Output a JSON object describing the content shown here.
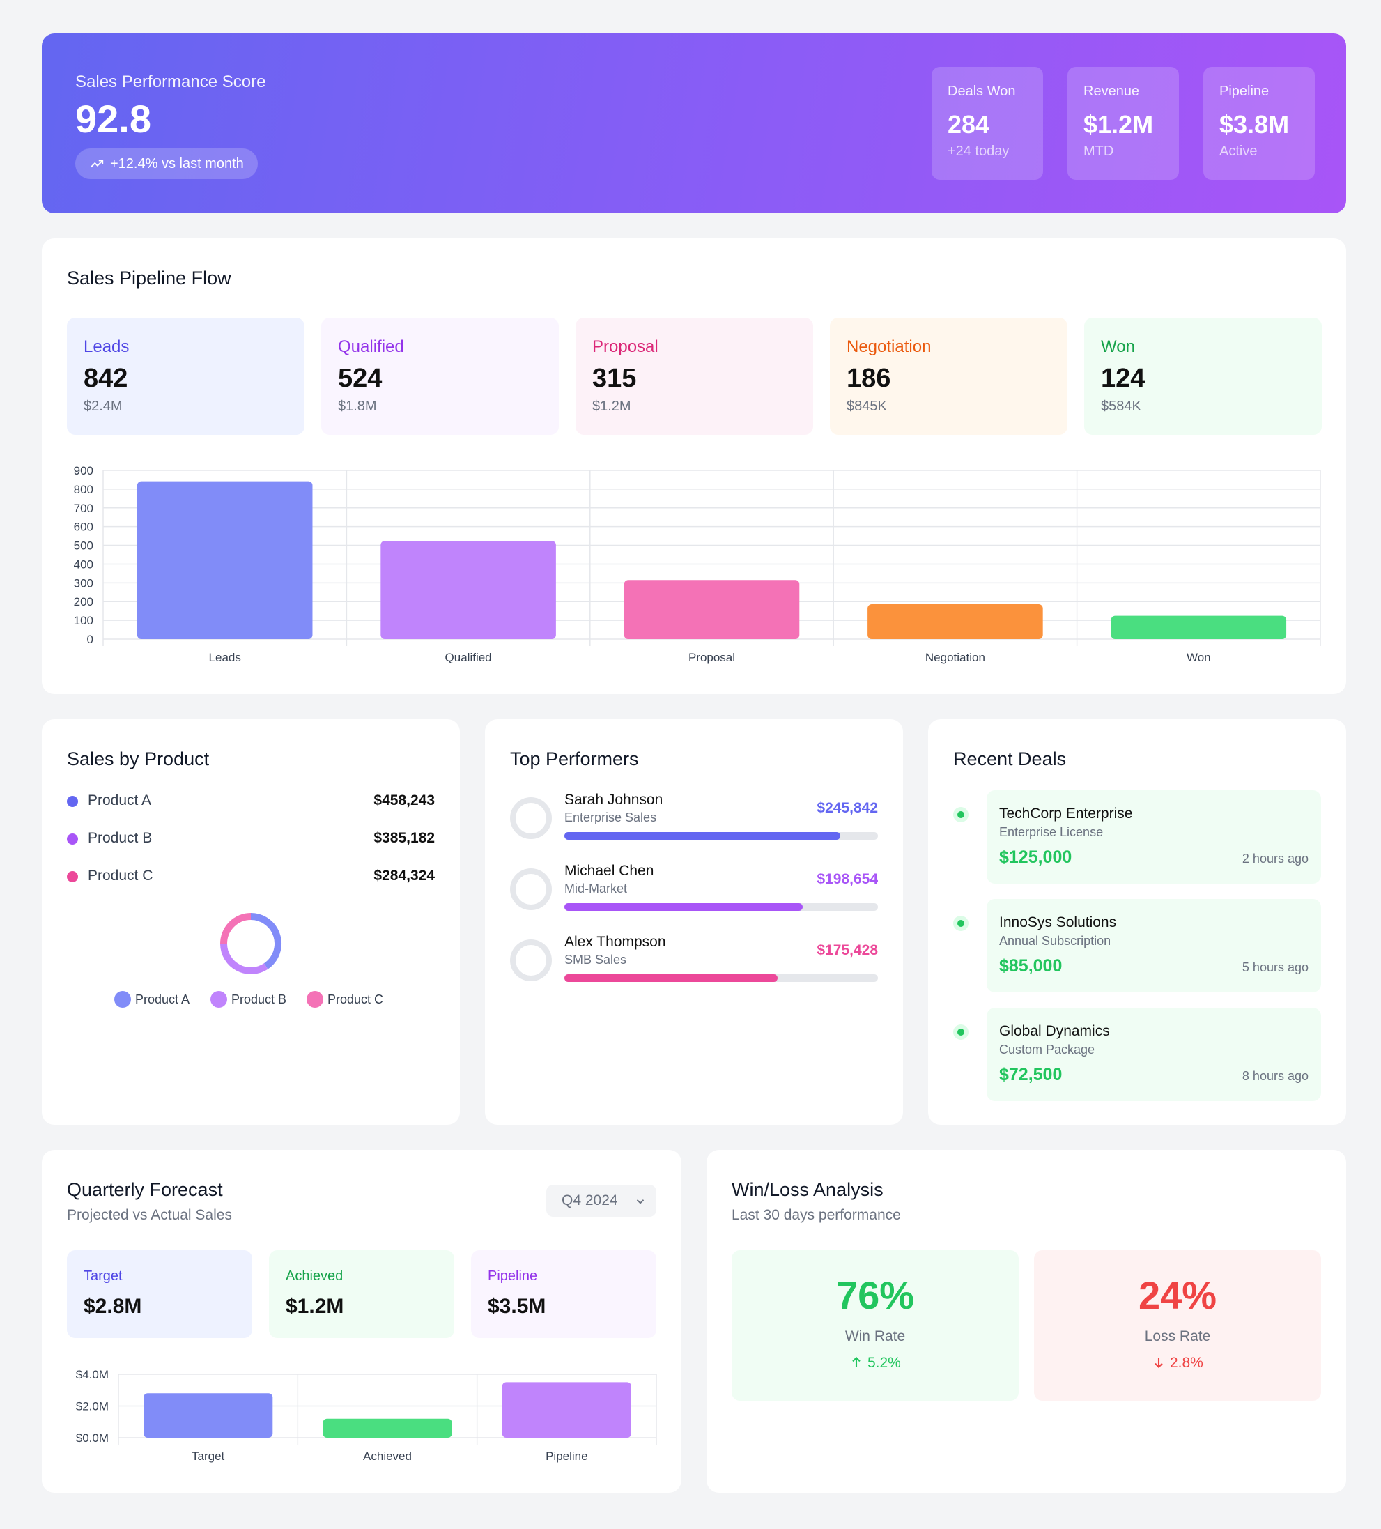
{
  "header": {
    "score_label": "Sales Performance Score",
    "score": "92.8",
    "trend": "+12.4% vs last month",
    "stats": [
      {
        "label": "Deals Won",
        "value": "284",
        "note": "+24 today"
      },
      {
        "label": "Revenue",
        "value": "$1.2M",
        "note": "MTD"
      },
      {
        "label": "Pipeline",
        "value": "$3.8M",
        "note": "Active"
      }
    ]
  },
  "pipeline": {
    "title": "Sales Pipeline Flow",
    "stages": [
      {
        "name": "Leads",
        "count": "842",
        "amount": "$2.4M",
        "color": "#4f46e5",
        "bg": "#eef2ff"
      },
      {
        "name": "Qualified",
        "count": "524",
        "amount": "$1.8M",
        "color": "#9333ea",
        "bg": "#faf5ff"
      },
      {
        "name": "Proposal",
        "count": "315",
        "amount": "$1.2M",
        "color": "#db2777",
        "bg": "#fdf2f8"
      },
      {
        "name": "Negotiation",
        "count": "186",
        "amount": "$845K",
        "color": "#ea580c",
        "bg": "#fff7ed"
      },
      {
        "name": "Won",
        "count": "124",
        "amount": "$584K",
        "color": "#16a34a",
        "bg": "#f0fdf4"
      }
    ]
  },
  "products": {
    "title": "Sales by Product",
    "items": [
      {
        "name": "Product A",
        "value": "$458,243",
        "color": "#6366f1"
      },
      {
        "name": "Product B",
        "value": "$385,182",
        "color": "#a855f7"
      },
      {
        "name": "Product C",
        "value": "$284,324",
        "color": "#ec4899"
      }
    ]
  },
  "performers": {
    "title": "Top Performers",
    "items": [
      {
        "name": "Sarah Johnson",
        "role": "Enterprise Sales",
        "amount": "$245,842",
        "progress": 0.88,
        "color": "#6366f1"
      },
      {
        "name": "Michael Chen",
        "role": "Mid-Market",
        "amount": "$198,654",
        "progress": 0.76,
        "color": "#a855f7"
      },
      {
        "name": "Alex Thompson",
        "role": "SMB Sales",
        "amount": "$175,428",
        "progress": 0.68,
        "color": "#ec4899"
      }
    ]
  },
  "deals": {
    "title": "Recent Deals",
    "items": [
      {
        "name": "TechCorp Enterprise",
        "desc": "Enterprise License",
        "amount": "$125,000",
        "time": "2 hours ago"
      },
      {
        "name": "InnoSys Solutions",
        "desc": "Annual Subscription",
        "amount": "$85,000",
        "time": "5 hours ago"
      },
      {
        "name": "Global Dynamics",
        "desc": "Custom Package",
        "amount": "$72,500",
        "time": "8 hours ago"
      }
    ]
  },
  "forecast": {
    "title": "Quarterly Forecast",
    "subtitle": "Projected vs Actual Sales",
    "quarter": "Q4 2024",
    "boxes": [
      {
        "label": "Target",
        "value": "$2.8M",
        "color": "#4f46e5",
        "bg": "#eef2ff"
      },
      {
        "label": "Achieved",
        "value": "$1.2M",
        "color": "#16a34a",
        "bg": "#f0fdf4"
      },
      {
        "label": "Pipeline",
        "value": "$3.5M",
        "color": "#9333ea",
        "bg": "#faf5ff"
      }
    ]
  },
  "winloss": {
    "title": "Win/Loss Analysis",
    "subtitle": "Last 30 days performance",
    "win": {
      "value": "76%",
      "label": "Win Rate",
      "change": "5.2%"
    },
    "loss": {
      "value": "24%",
      "label": "Loss Rate",
      "change": "2.8%"
    }
  },
  "chart_data": [
    {
      "type": "bar",
      "categories": [
        "Leads",
        "Qualified",
        "Proposal",
        "Negotiation",
        "Won"
      ],
      "values": [
        842,
        524,
        315,
        186,
        124
      ],
      "ylim": [
        0,
        900
      ],
      "yticks": [
        0,
        100,
        200,
        300,
        400,
        500,
        600,
        700,
        800,
        900
      ],
      "colors": [
        "#818cf8",
        "#c084fc",
        "#f472b6",
        "#fb923c",
        "#4ade80"
      ],
      "grid": true
    },
    {
      "type": "pie",
      "categories": [
        "Product A",
        "Product B",
        "Product C"
      ],
      "values": [
        458243,
        385182,
        284324
      ],
      "colors": [
        "#818cf8",
        "#c084fc",
        "#f472b6"
      ],
      "legend": "bottom"
    },
    {
      "type": "bar",
      "categories": [
        "Target",
        "Achieved",
        "Pipeline"
      ],
      "values": [
        2.8,
        1.2,
        3.5
      ],
      "ylim": [
        0,
        4
      ],
      "yticks": [
        0,
        2,
        4
      ],
      "ytick_labels": [
        "$0.0M",
        "$2.0M",
        "$4.0M"
      ],
      "colors": [
        "#818cf8",
        "#4ade80",
        "#c084fc"
      ],
      "grid": true
    }
  ]
}
